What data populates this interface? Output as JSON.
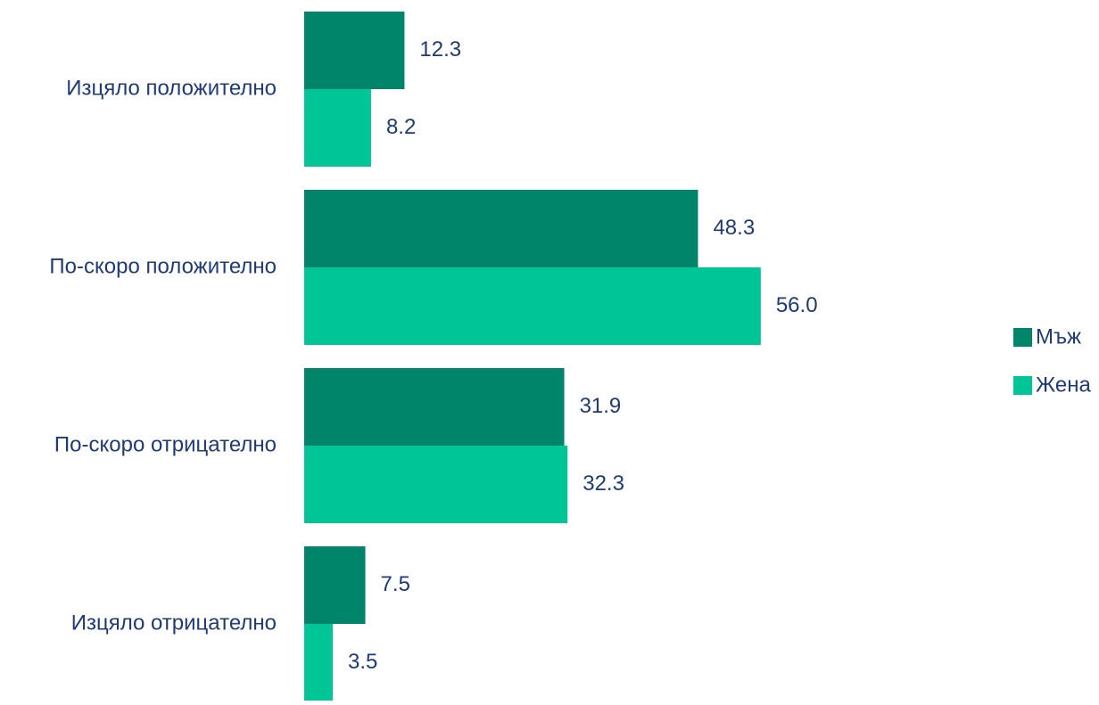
{
  "chart_data": {
    "type": "bar",
    "orientation": "horizontal",
    "categories": [
      "Изцяло положително",
      "По-скоро положително",
      "По-скоро отрицателно",
      "Изцяло отрицателно"
    ],
    "series": [
      {
        "name": "Мъж",
        "color": "#00856A",
        "values": [
          12.3,
          48.3,
          31.9,
          7.5
        ]
      },
      {
        "name": "Жена",
        "color": "#00C596",
        "values": [
          8.2,
          56.0,
          32.3,
          3.5
        ]
      }
    ],
    "value_labels": [
      [
        "12.3",
        "48.3",
        "31.9",
        "7.5"
      ],
      [
        "8.2",
        "56.0",
        "32.3",
        "3.5"
      ]
    ],
    "text_color": "#1F3A7A",
    "gridlines": false,
    "axis_lines": false,
    "legend_position": "right"
  }
}
